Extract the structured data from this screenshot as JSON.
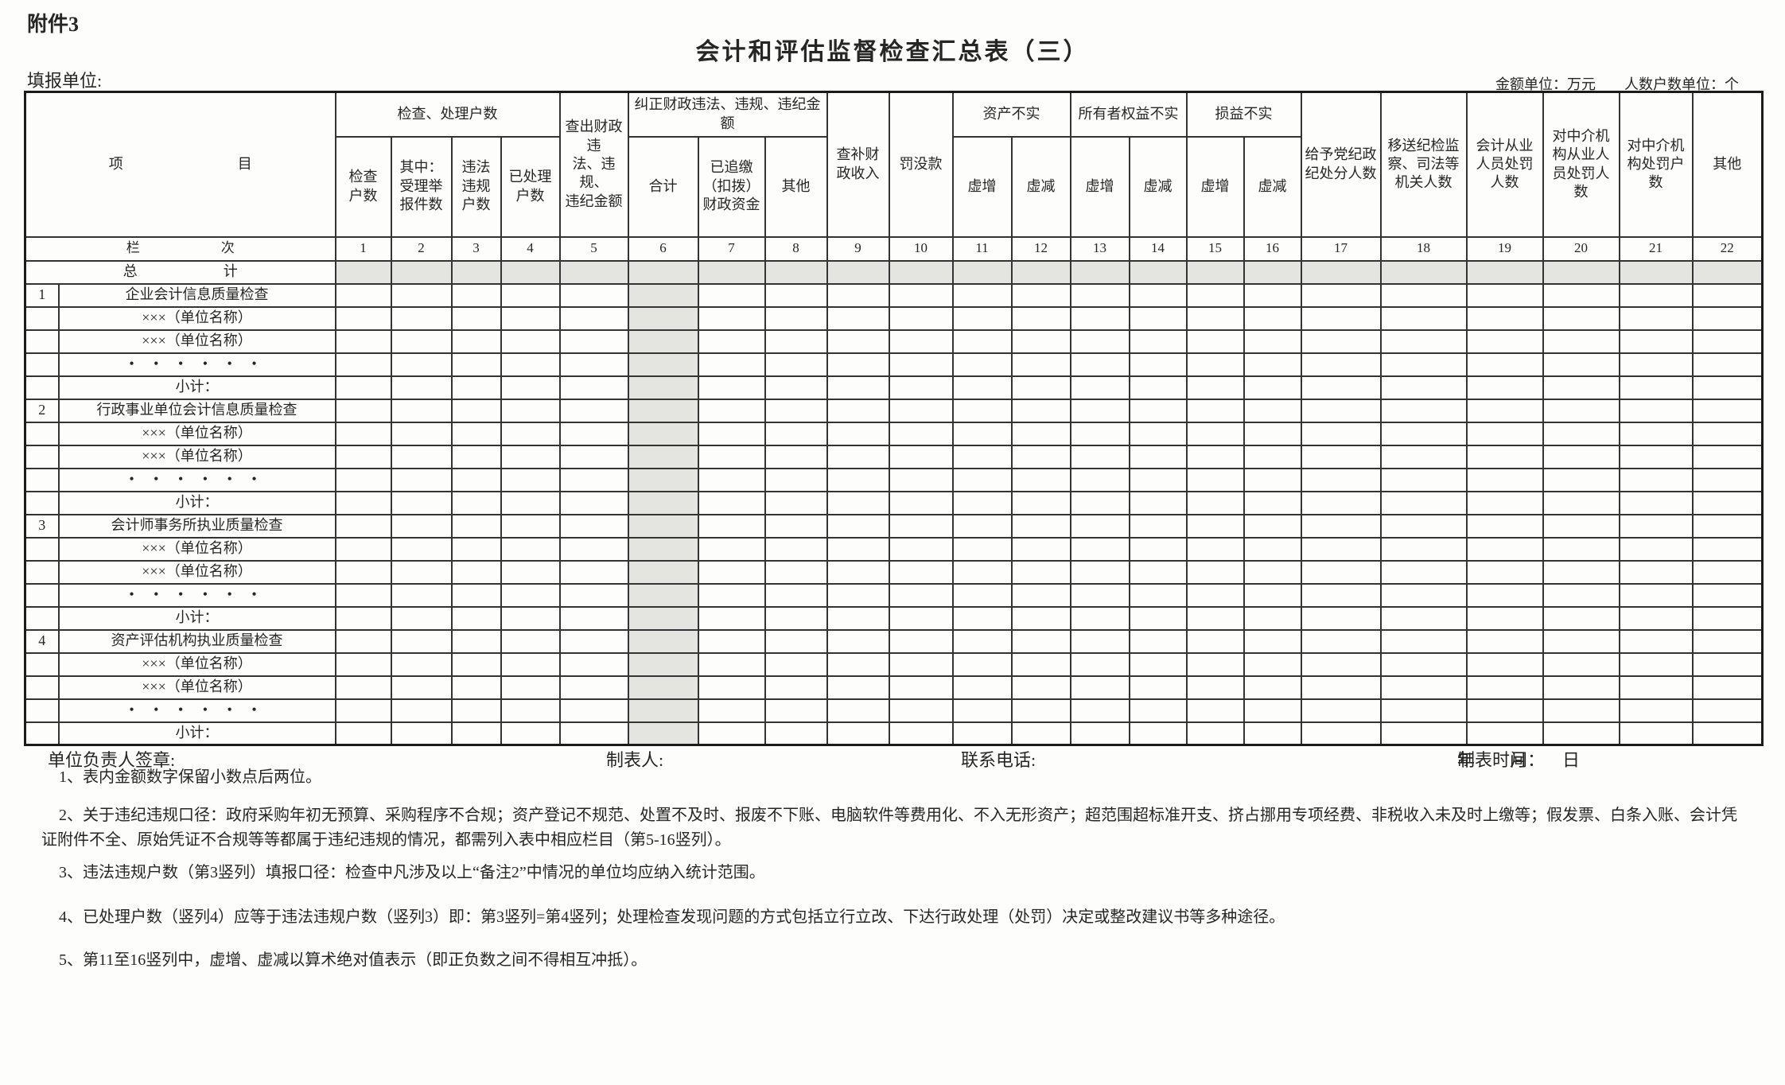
{
  "page": {
    "attachment_label": "附件3",
    "title": "会计和评估监督检查汇总表（三）",
    "reporting_unit_label": "填报单位:",
    "units_note": "金额单位：万元　　人数户数单位：个"
  },
  "table": {
    "header": {
      "item": "项　　　　　　　　目",
      "check_group": "检查、处理户数",
      "check_cols": [
        "检查\n户数",
        "其中：\n受理举\n报件数",
        "违法\n违规\n户数",
        "已处理\n户数"
      ],
      "found_amount": "查出财政违\n法、违规、\n违纪金额",
      "correct_group": "纠正财政违法、违规、违纪金\n额",
      "correct_cols": [
        "合计",
        "已追缴\n（扣拨）\n财政资金",
        "其他"
      ],
      "revenue": "查补财\n政收入",
      "fines": "罚没款",
      "asset_group": "资产不实",
      "equity_group": "所有者权益不实",
      "profit_group": "损益不实",
      "overstate": "虚增",
      "understate": "虚减",
      "discipline": "给予党纪政\n纪处分人数",
      "transfer": "移送纪检监\n察、司法等\n机关人数",
      "accountant_punish": "会计从业\n人员处罚\n人数",
      "intermediary_staff_punish": "对中介机\n构从业人\n员处罚人\n数",
      "intermediary_punish": "对中介机\n构处罚户\n数",
      "other": "其他"
    },
    "lane_label": "栏　　　　　　次",
    "lane_numbers": [
      "1",
      "2",
      "3",
      "4",
      "5",
      "6",
      "7",
      "8",
      "9",
      "10",
      "11",
      "12",
      "13",
      "14",
      "15",
      "16",
      "17",
      "18",
      "19",
      "20",
      "21",
      "22"
    ],
    "total_label": "总　　　　　　计",
    "sections": [
      {
        "num": "1",
        "title": "企业会计信息质量检查"
      },
      {
        "num": "2",
        "title": "行政事业单位会计信息质量检查"
      },
      {
        "num": "3",
        "title": "会计师事务所执业质量检查"
      },
      {
        "num": "4",
        "title": "资产评估机构执业质量检查"
      }
    ],
    "unit_row": "×××（单位名称）",
    "dots_row": "•  •  •  •  •  •",
    "subtotal_label": "小计：",
    "shaded_column_index": 6,
    "shaded_color": "#e4e4e1"
  },
  "footer": {
    "signature_label": "单位负责人签章:",
    "preparer_label": "制表人:",
    "phone_label": "联系电话:",
    "date_label": "制表时间：",
    "date_value": "年　　月　　日"
  },
  "notes": [
    "1、表内金额数字保留小数点后两位。",
    "2、关于违纪违规口径：政府采购年初无预算、采购程序不合规；资产登记不规范、处置不及时、报废不下账、电脑软件等费用化、不入无形资产；超范围超标准开支、挤占挪用专项经费、非税收入未及时上缴等；假发票、白条入账、会计凭证附件不全、原始凭证不合规等等都属于违纪违规的情况，都需列入表中相应栏目（第5-16竖列）。",
    "3、违法违规户数（第3竖列）填报口径：检查中凡涉及以上“备注2”中情况的单位均应纳入统计范围。",
    "4、已处理户数（竖列4）应等于违法违规户数（竖列3）即：第3竖列=第4竖列；处理检查发现问题的方式包括立行立改、下达行政处理（处罚）决定或整改建议书等多种途径。",
    "5、第11至16竖列中，虚增、虚减以算术绝对值表示（即正负数之间不得相互冲抵）。"
  ]
}
